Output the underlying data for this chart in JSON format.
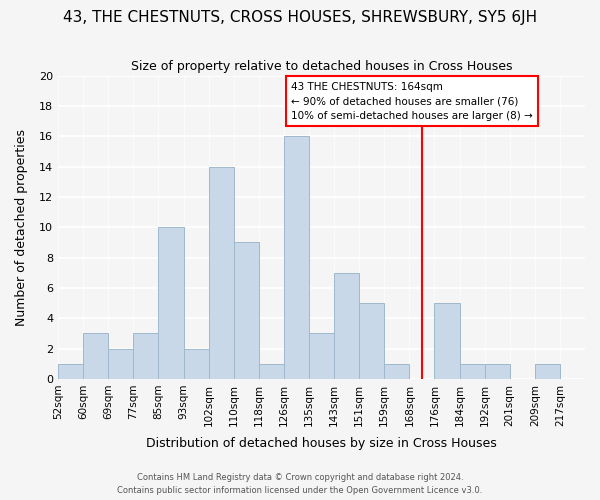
{
  "title": "43, THE CHESTNUTS, CROSS HOUSES, SHREWSBURY, SY5 6JH",
  "subtitle": "Size of property relative to detached houses in Cross Houses",
  "xlabel": "Distribution of detached houses by size in Cross Houses",
  "ylabel": "Number of detached properties",
  "footer_lines": [
    "Contains HM Land Registry data © Crown copyright and database right 2024.",
    "Contains public sector information licensed under the Open Government Licence v3.0."
  ],
  "bin_labels": [
    "52sqm",
    "60sqm",
    "69sqm",
    "77sqm",
    "85sqm",
    "93sqm",
    "102sqm",
    "110sqm",
    "118sqm",
    "126sqm",
    "135sqm",
    "143sqm",
    "151sqm",
    "159sqm",
    "168sqm",
    "176sqm",
    "184sqm",
    "192sqm",
    "201sqm",
    "209sqm",
    "217sqm"
  ],
  "bin_counts": [
    1,
    3,
    2,
    3,
    10,
    2,
    14,
    9,
    1,
    16,
    3,
    7,
    5,
    1,
    0,
    5,
    1,
    1,
    0,
    1,
    0
  ],
  "bar_color": "#c8d8e8",
  "bar_edge_color": "#a0b8cc",
  "vline_x": 14.5,
  "vline_color": "red",
  "annotation_title": "43 THE CHESTNUTS: 164sqm",
  "annotation_line1": "← 90% of detached houses are smaller (76)",
  "annotation_line2": "10% of semi-detached houses are larger (8) →",
  "annotation_box_color": "white",
  "annotation_box_edge": "red",
  "ylim": [
    0,
    20
  ],
  "yticks": [
    0,
    2,
    4,
    6,
    8,
    10,
    12,
    14,
    16,
    18,
    20
  ],
  "background_color": "#f5f5f5",
  "grid_color": "white"
}
